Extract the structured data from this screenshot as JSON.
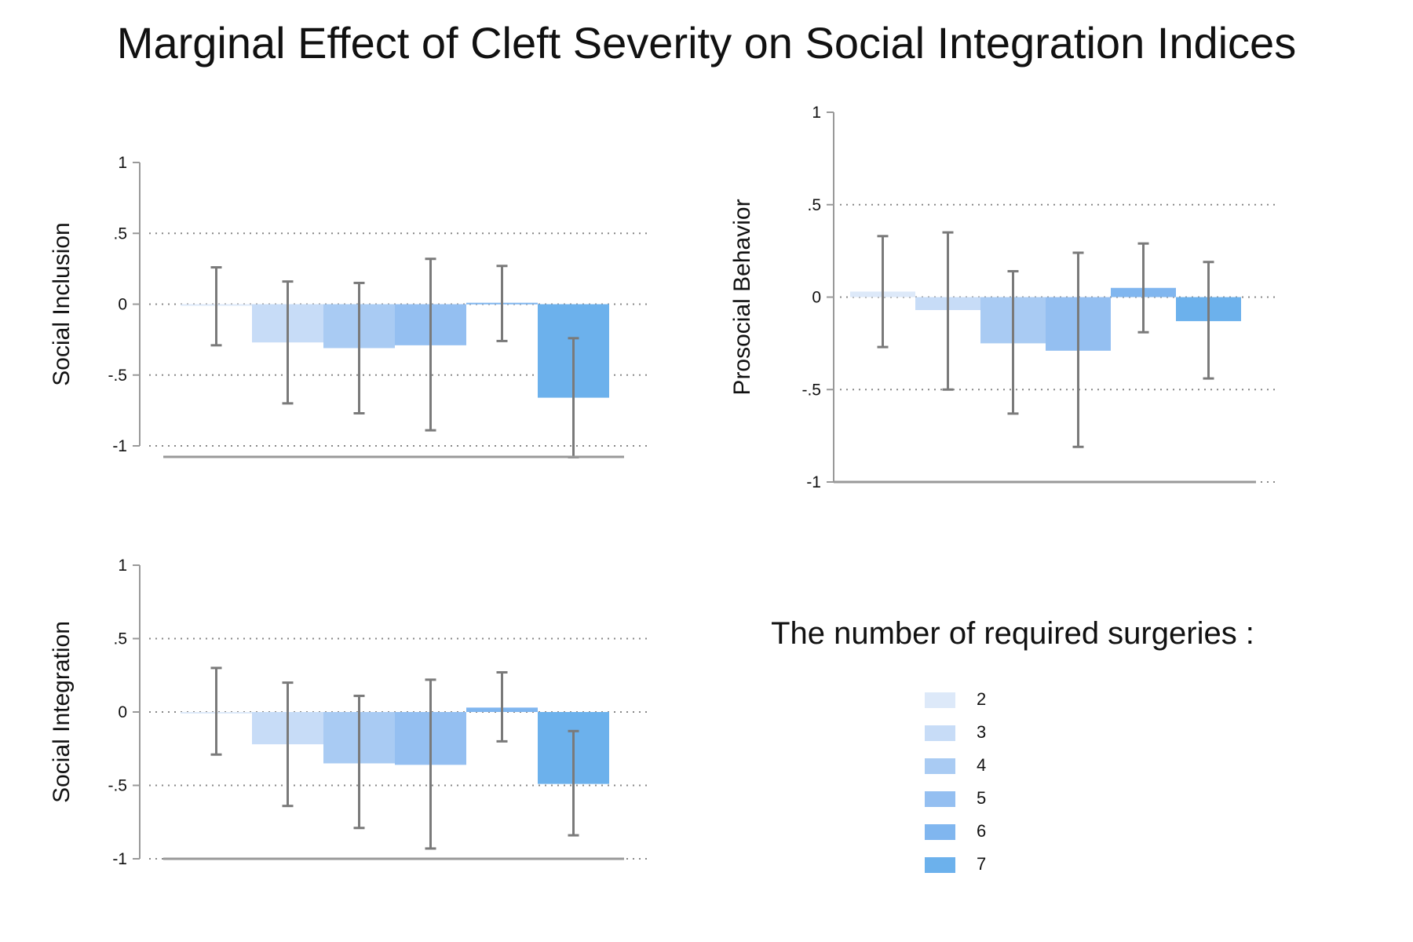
{
  "title": "Marginal Effect of Cleft Severity on Social Integration Indices",
  "legend": {
    "title": "The number of required surgeries :",
    "entries": [
      "2",
      "3",
      "4",
      "5",
      "6",
      "7"
    ]
  },
  "colors": {
    "series": [
      "#dde9f9",
      "#c7dcf7",
      "#a9cbf3",
      "#94bff1",
      "#80b6ef",
      "#6cb1ec"
    ],
    "error_bar": "#7a7a7a",
    "axis": "#999999",
    "grid": "#888888"
  },
  "chart_data": [
    {
      "type": "bar",
      "ylabel": "Social Inclusion",
      "ylim": [
        -1,
        1
      ],
      "yticks": [
        1,
        0.5,
        0,
        -0.5,
        -1
      ],
      "ytick_labels": [
        "1",
        ".5",
        "0",
        "-.5",
        "-1"
      ],
      "grid": true,
      "series": [
        {
          "name": "2",
          "value": -0.01,
          "ci": [
            -0.29,
            0.26
          ]
        },
        {
          "name": "3",
          "value": -0.27,
          "ci": [
            -0.7,
            0.16
          ]
        },
        {
          "name": "4",
          "value": -0.31,
          "ci": [
            -0.77,
            0.15
          ]
        },
        {
          "name": "5",
          "value": -0.29,
          "ci": [
            -0.89,
            0.32
          ]
        },
        {
          "name": "6",
          "value": 0.01,
          "ci": [
            -0.26,
            0.27
          ]
        },
        {
          "name": "7",
          "value": -0.66,
          "ci": [
            -1.08,
            -0.24
          ]
        }
      ]
    },
    {
      "type": "bar",
      "ylabel": "Prosocial Behavior",
      "ylim": [
        -1,
        1
      ],
      "yticks": [
        1,
        0.5,
        0,
        -0.5,
        -1
      ],
      "ytick_labels": [
        "1",
        ".5",
        "0",
        "-.5",
        "-1"
      ],
      "grid": true,
      "series": [
        {
          "name": "2",
          "value": 0.03,
          "ci": [
            -0.27,
            0.33
          ]
        },
        {
          "name": "3",
          "value": -0.07,
          "ci": [
            -0.5,
            0.35
          ]
        },
        {
          "name": "4",
          "value": -0.25,
          "ci": [
            -0.63,
            0.14
          ]
        },
        {
          "name": "5",
          "value": -0.29,
          "ci": [
            -0.81,
            0.24
          ]
        },
        {
          "name": "6",
          "value": 0.05,
          "ci": [
            -0.19,
            0.29
          ]
        },
        {
          "name": "7",
          "value": -0.13,
          "ci": [
            -0.44,
            0.19
          ]
        }
      ]
    },
    {
      "type": "bar",
      "ylabel": "Social Integration",
      "ylim": [
        -1,
        1
      ],
      "yticks": [
        1,
        0.5,
        0,
        -0.5,
        -1
      ],
      "ytick_labels": [
        "1",
        ".5",
        "0",
        "-.5",
        "-1"
      ],
      "grid": true,
      "series": [
        {
          "name": "2",
          "value": 0.0,
          "ci": [
            -0.29,
            0.3
          ]
        },
        {
          "name": "3",
          "value": -0.22,
          "ci": [
            -0.64,
            0.2
          ]
        },
        {
          "name": "4",
          "value": -0.35,
          "ci": [
            -0.79,
            0.11
          ]
        },
        {
          "name": "5",
          "value": -0.36,
          "ci": [
            -0.93,
            0.22
          ]
        },
        {
          "name": "6",
          "value": 0.03,
          "ci": [
            -0.2,
            0.27
          ]
        },
        {
          "name": "7",
          "value": -0.49,
          "ci": [
            -0.84,
            -0.13
          ]
        }
      ]
    }
  ]
}
